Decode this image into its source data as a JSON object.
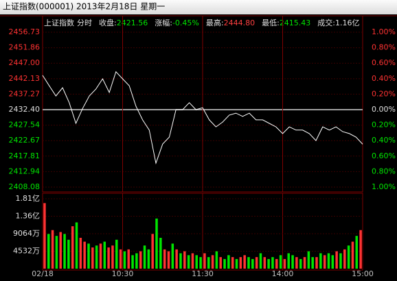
{
  "window_title": "上证指数(000001) 2013年2月18日 星期一",
  "header": {
    "name": "上证指数",
    "view": "分时",
    "items": [
      {
        "label": "收盘:",
        "value": 2421.56,
        "color": "#00e600"
      },
      {
        "label": "涨幅:",
        "value": "-0.45%",
        "color": "#00e600"
      },
      {
        "label": "最高:",
        "value": 2444.8,
        "value_label": "2444.80",
        "color": "#ff4040"
      },
      {
        "label": "最低:",
        "value": 2415.43,
        "color": "#00e600"
      },
      {
        "label": "成交:",
        "value": "1.16亿",
        "color": "#e0e0e0"
      }
    ]
  },
  "chart_data": [
    {
      "type": "line",
      "color": "#ffffff",
      "x": [
        0,
        5,
        10,
        15,
        20,
        25,
        30,
        35,
        40,
        45,
        50,
        55,
        60,
        65,
        70,
        75,
        80,
        85,
        90,
        95,
        100,
        105,
        110,
        115,
        120,
        125,
        130,
        135,
        140,
        145,
        150,
        155,
        160,
        165,
        170,
        175,
        180,
        185,
        190,
        195,
        200,
        205,
        210,
        215,
        220,
        225,
        230,
        235,
        240
      ],
      "values": [
        2443.2,
        2439.9,
        2436.7,
        2439.3,
        2434.6,
        2428.1,
        2432.8,
        2436.7,
        2438.9,
        2442.1,
        2437.8,
        2444.3,
        2442.1,
        2439.9,
        2433.5,
        2429.2,
        2426.0,
        2415.6,
        2421.6,
        2423.8,
        2432.4,
        2432.4,
        2434.6,
        2432.4,
        2433.0,
        2429.2,
        2427.0,
        2428.5,
        2430.7,
        2431.3,
        2430.3,
        2431.3,
        2429.2,
        2429.2,
        2428.1,
        2427.0,
        2424.9,
        2427.0,
        2426.0,
        2426.0,
        2424.9,
        2422.7,
        2427.0,
        2426.0,
        2427.0,
        2425.5,
        2424.9,
        2423.8,
        2421.56
      ],
      "xlim": [
        0,
        240
      ],
      "xticks": [
        {
          "value": 0,
          "label": "02/18"
        },
        {
          "value": 60,
          "label": "10:30"
        },
        {
          "value": 120,
          "label": "11:30"
        },
        {
          "value": 180,
          "label": "14:00"
        },
        {
          "value": 240,
          "label": "15:00"
        }
      ],
      "ylim": [
        2408.08,
        2456.73
      ],
      "yticks": [
        2456.73,
        2451.86,
        {
          "value": 2447.0,
          "label": "2447.00"
        },
        2442.13,
        2437.27,
        {
          "value": 2432.4,
          "label": "2432.40"
        },
        2427.54,
        2422.67,
        2417.81,
        2412.94,
        2408.08
      ],
      "y2lim": [
        -1,
        1
      ],
      "y2ticks": [
        {
          "value": 1,
          "label": "1.00%"
        },
        {
          "value": 0.8,
          "label": "0.80%"
        },
        {
          "value": 0.6,
          "label": "0.60%"
        },
        {
          "value": 0.4,
          "label": "0.40%"
        },
        {
          "value": 0.2,
          "label": "0.20%"
        },
        {
          "value": 0,
          "label": "0.00%"
        },
        {
          "value": -0.2,
          "label": "0.20%"
        },
        {
          "value": -0.4,
          "label": "0.40%"
        },
        {
          "value": -0.6,
          "label": "0.60%"
        },
        {
          "value": -0.8,
          "label": "0.80%"
        },
        {
          "value": -1,
          "label": "1.00%"
        }
      ],
      "grid": true
    },
    {
      "type": "bar",
      "values": [
        17000,
        9000,
        10000,
        8500,
        9500,
        9000,
        7500,
        11000,
        12000,
        8000,
        7000,
        6500,
        5500,
        6000,
        6500,
        7000,
        5500,
        6000,
        7500,
        5000,
        4500,
        5000,
        3500,
        4000,
        4500,
        6000,
        5000,
        9000,
        13000,
        8000,
        5000,
        4500,
        6500,
        5000,
        4000,
        4500,
        3500,
        4000,
        3500,
        3000,
        4000,
        3000,
        3500,
        4500,
        3000,
        2500,
        3500,
        3000,
        2500,
        3000,
        3500,
        3000,
        2500,
        3000,
        4000,
        3000,
        2500,
        3000,
        2500,
        3500,
        2500,
        4000,
        3500,
        3000,
        2500,
        3000,
        4500,
        3000,
        3000,
        4000,
        3500,
        4000,
        3500,
        4500,
        4000,
        5000,
        6000,
        7000,
        8500,
        10000
      ],
      "colors": [
        "#ff3232",
        "#00e600",
        "#ff3232",
        "#00e600",
        "#ff3232",
        "#00e600",
        "#00e600",
        "#ff3232",
        "#00e600",
        "#ff3232",
        "#ff3232",
        "#00e600",
        "#ff3232",
        "#00e600",
        "#ff3232",
        "#00e600",
        "#ff3232",
        "#ff3232",
        "#00e600",
        "#ff3232",
        "#00e600",
        "#ff3232",
        "#00e600",
        "#00e600",
        "#ff3232",
        "#00e600",
        "#00e600",
        "#ff3232",
        "#00e600",
        "#00e600",
        "#ff3232",
        "#ff3232",
        "#00e600",
        "#ff3232",
        "#00e600",
        "#ff3232",
        "#00e600",
        "#ff3232",
        "#00e600",
        "#00e600",
        "#ff3232",
        "#00e600",
        "#ff3232",
        "#00e600",
        "#ff3232",
        "#00e600",
        "#00e600",
        "#ff3232",
        "#00e600",
        "#ff3232",
        "#ff3232",
        "#00e600",
        "#00e600",
        "#ff3232",
        "#00e600",
        "#ff3232",
        "#00e600",
        "#00e600",
        "#ff3232",
        "#00e600",
        "#ff3232",
        "#00e600",
        "#00e600",
        "#ff3232",
        "#00e600",
        "#ff3232",
        "#00e600",
        "#00e600",
        "#ff3232",
        "#00e600",
        "#ff3232",
        "#00e600",
        "#00e600",
        "#ff3232",
        "#00e600",
        "#ff3232",
        "#00e600",
        "#ff3232",
        "#00e600",
        "#ff3232"
      ],
      "ylim": [
        0,
        18128
      ],
      "yticks": [
        {
          "value": 18128,
          "label": "1.81亿"
        },
        {
          "value": 13596,
          "label": "1.36亿"
        },
        {
          "value": 9064,
          "label": "9064万"
        },
        {
          "value": 4532,
          "label": "4532万"
        }
      ]
    }
  ]
}
